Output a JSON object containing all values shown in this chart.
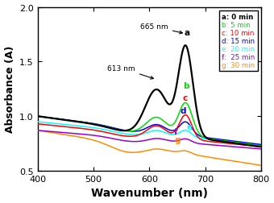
{
  "xlabel": "Wavenumber (nm)",
  "ylabel": "Absorbance (A)",
  "xlim": [
    400,
    800
  ],
  "ylim": [
    0.5,
    2.0
  ],
  "yticks": [
    0.5,
    1.0,
    1.5,
    2.0
  ],
  "xticks": [
    400,
    500,
    600,
    700,
    800
  ],
  "series_colors": [
    "black",
    "#00dd00",
    "red",
    "#0000ee",
    "cyan",
    "#9900cc",
    "darkorange"
  ],
  "series_labels": [
    "a: 0 min",
    "b: 5 min",
    "c: 10 min",
    "d: 15 min",
    "e: 20 min",
    "f:  25 min",
    "g: 30 min"
  ],
  "legend_text_colors": [
    "black",
    "#00dd00",
    "red",
    "#0000ee",
    "cyan",
    "#9900cc",
    "darkorange"
  ]
}
